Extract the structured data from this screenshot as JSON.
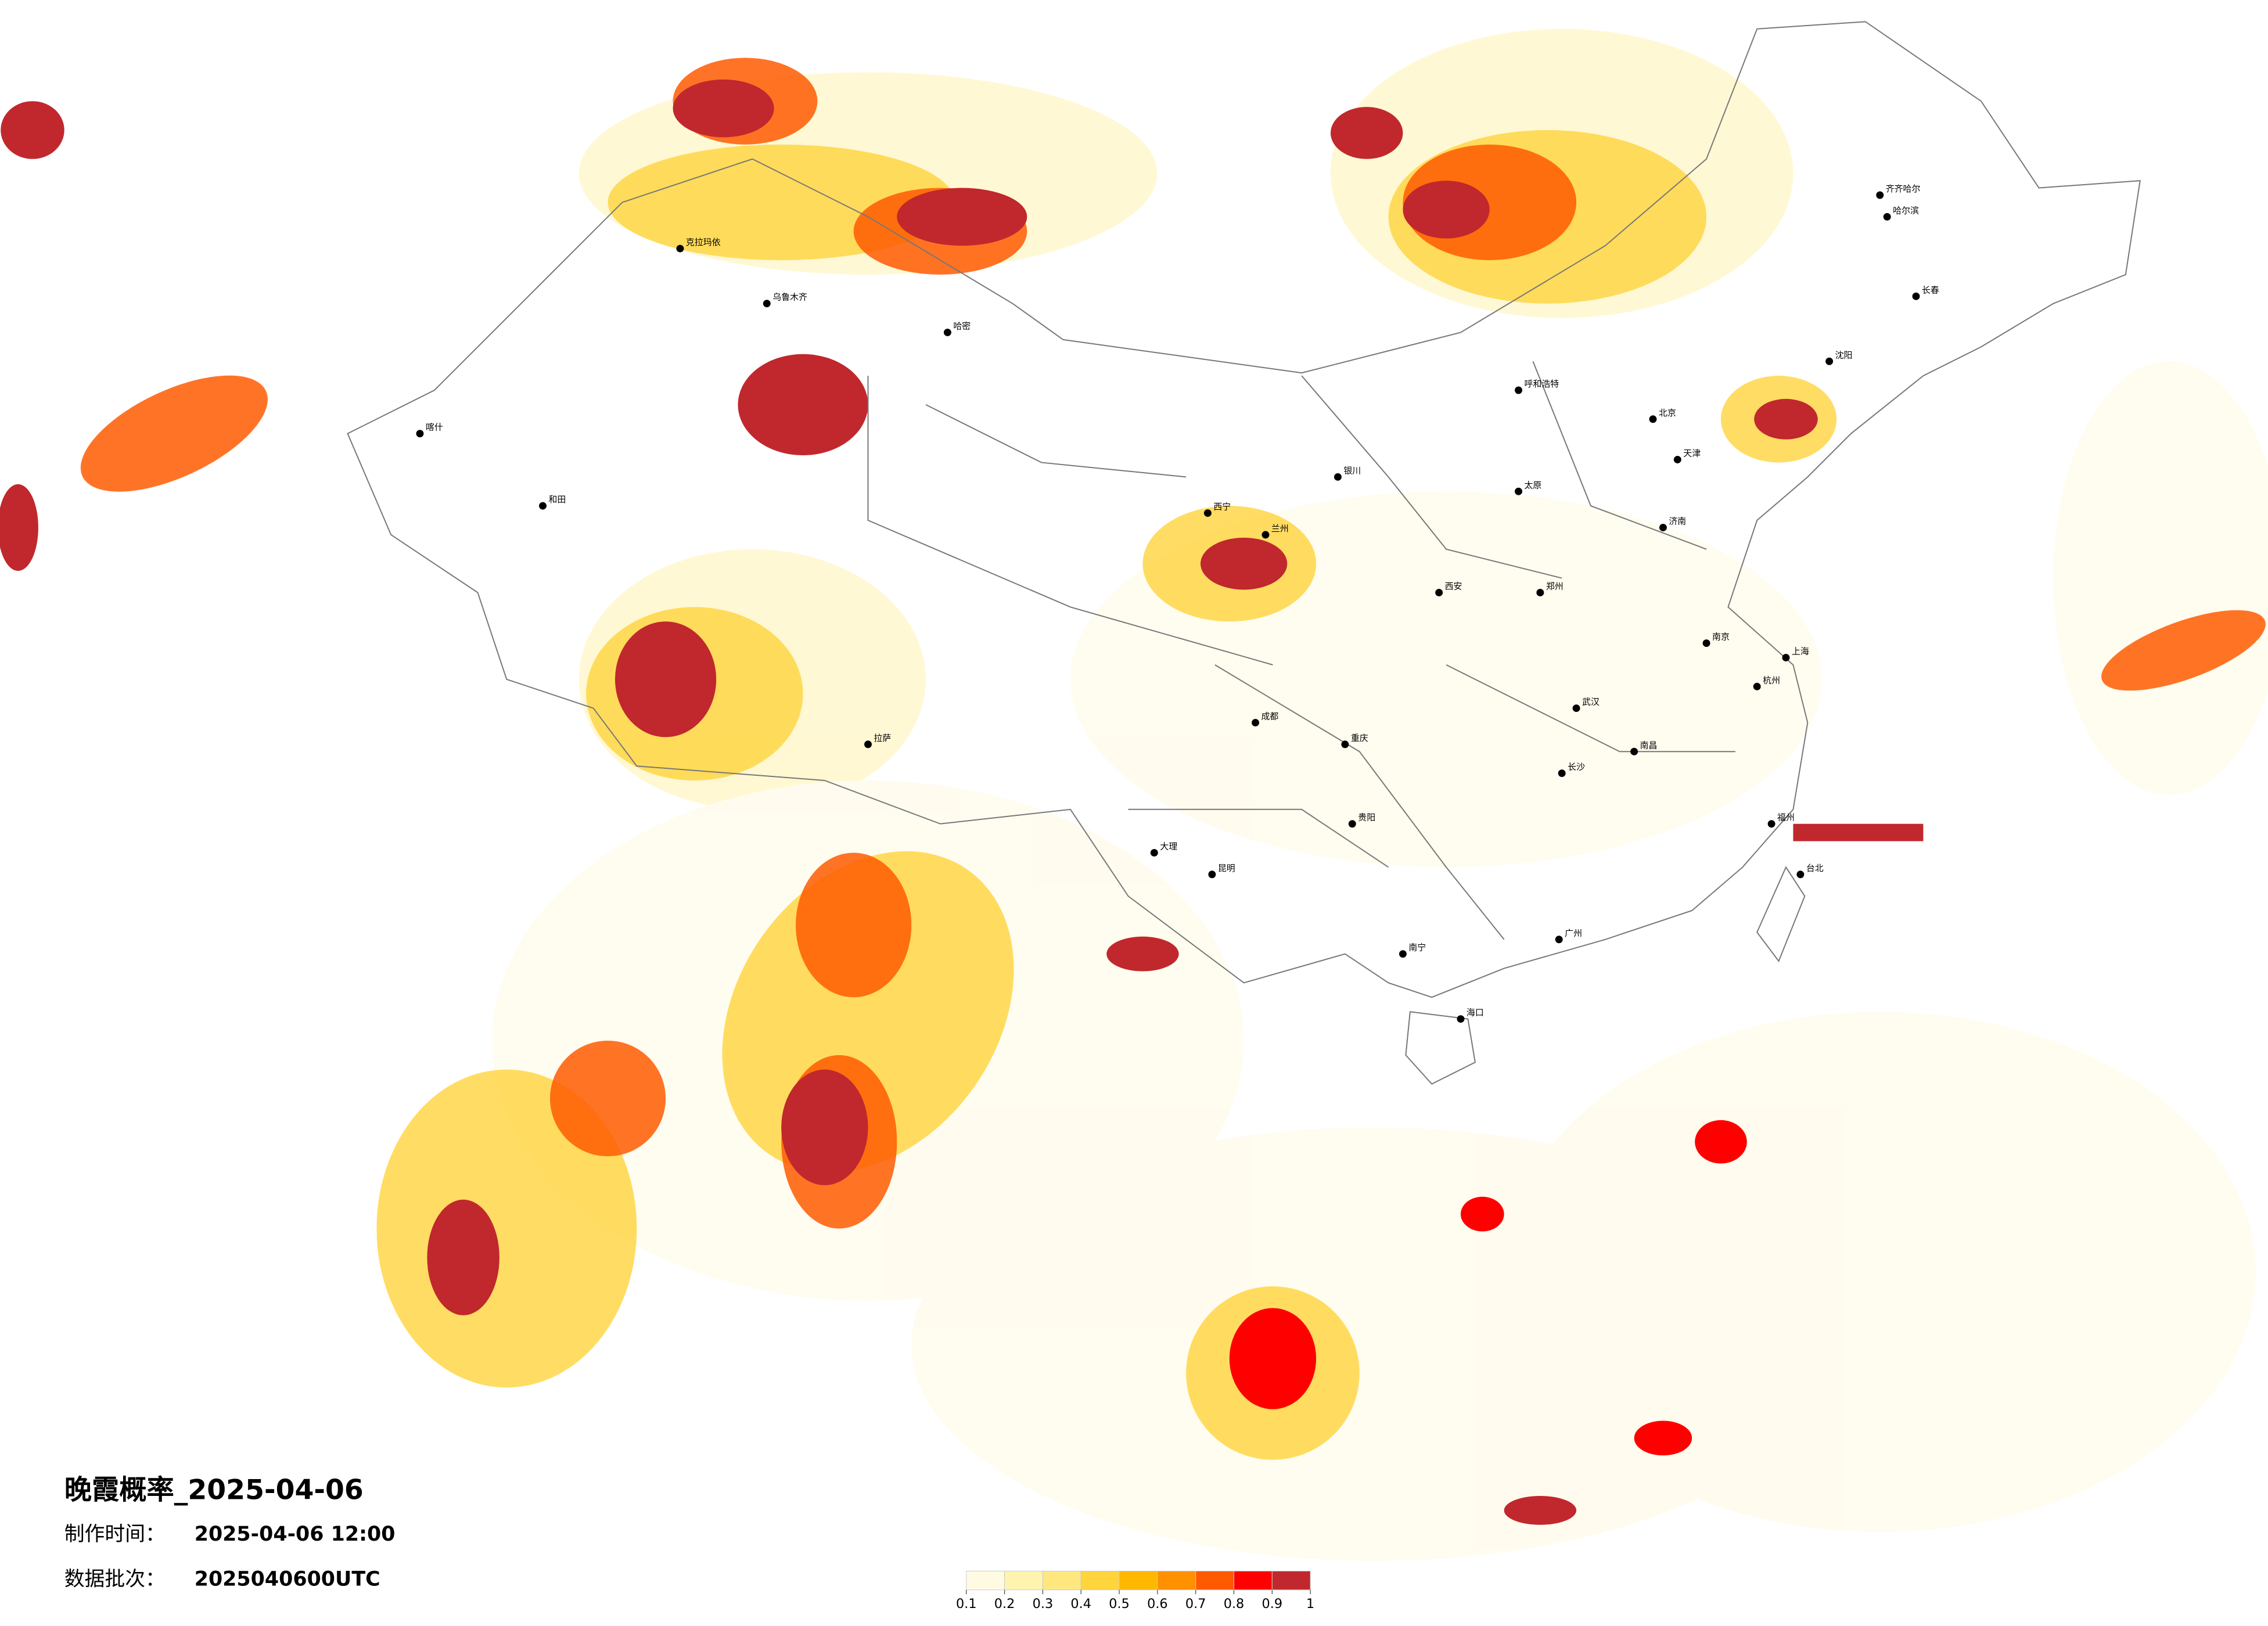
{
  "title": "晚霞概率_2025-04-06",
  "info": [
    {
      "label": "制作时间：",
      "value": "2025-04-06 12:00"
    },
    {
      "label": "数据批次：",
      "value": "2025040600UTC"
    }
  ],
  "legend": {
    "ticks": [
      0.1,
      0.2,
      0.3,
      0.4,
      0.5,
      0.6,
      0.7,
      0.8,
      0.9,
      1
    ],
    "colors": [
      "#fffbe3",
      "#fff3b0",
      "#ffe780",
      "#ffd43c",
      "#ffb800",
      "#ff9000",
      "#ff5a00",
      "#ff0000",
      "#c0282d"
    ]
  },
  "cities": [
    "北京",
    "天津",
    "上海",
    "广州",
    "成都",
    "重庆",
    "武汉",
    "西安",
    "兰州",
    "乌鲁木齐",
    "拉萨",
    "昆明",
    "哈尔滨",
    "长春",
    "沈阳",
    "郑州",
    "南京",
    "杭州",
    "福州",
    "南宁",
    "海口",
    "贵阳",
    "长沙",
    "南昌",
    "济南",
    "太原",
    "呼和浩特",
    "银川",
    "西宁",
    "台北",
    "喀什",
    "和田",
    "克拉玛依",
    "哈密",
    "齐齐哈尔",
    "大理"
  ]
}
